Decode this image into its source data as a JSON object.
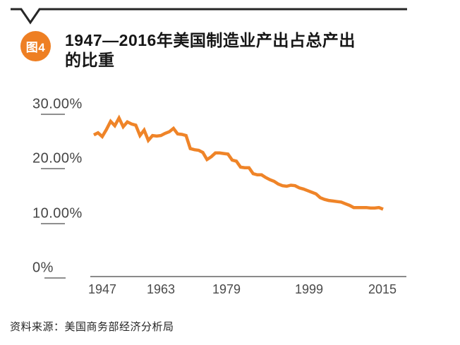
{
  "header": {
    "figure_label": "图4",
    "title_lines": [
      "1947—2016年美国制造业产出占总产出",
      "的比重"
    ]
  },
  "footer": {
    "source": "资料来源：美国商务部经济分析局"
  },
  "colors": {
    "accent_orange": "#EE7F23",
    "line_orange": "#EF8428",
    "rule_black": "#262626",
    "axis_gray": "#8A8A8A"
  },
  "chart_data": {
    "type": "line",
    "title": "1947—2016年美国制造业产出占总产出的比重",
    "xlabel": "",
    "ylabel": "",
    "grid": false,
    "legend": false,
    "line_color": "#EF8428",
    "x_range": [
      1947,
      2016
    ],
    "ylim": [
      0,
      30
    ],
    "x": [
      1947,
      1948,
      1949,
      1950,
      1951,
      1952,
      1953,
      1954,
      1955,
      1956,
      1957,
      1958,
      1959,
      1960,
      1961,
      1962,
      1963,
      1964,
      1965,
      1966,
      1967,
      1968,
      1969,
      1970,
      1971,
      1972,
      1973,
      1974,
      1975,
      1976,
      1977,
      1978,
      1979,
      1980,
      1981,
      1982,
      1983,
      1984,
      1985,
      1986,
      1987,
      1988,
      1989,
      1990,
      1991,
      1992,
      1993,
      1994,
      1995,
      1996,
      1997,
      1998,
      1999,
      2000,
      2001,
      2002,
      2003,
      2004,
      2005,
      2006,
      2007,
      2008,
      2009,
      2010,
      2011,
      2012,
      2013,
      2014,
      2015,
      2016
    ],
    "series": [
      {
        "name": "制造业产出占总产出比重(%)",
        "values": [
          24.4,
          24.8,
          24.1,
          25.4,
          26.9,
          26.1,
          27.5,
          25.9,
          26.8,
          26.4,
          26.2,
          24.3,
          25.3,
          23.4,
          24.3,
          24.2,
          24.3,
          24.7,
          25.0,
          25.6,
          24.6,
          24.5,
          24.3,
          21.9,
          21.7,
          21.6,
          21.2,
          19.9,
          20.4,
          21.1,
          21.1,
          21.0,
          20.9,
          19.8,
          19.6,
          18.5,
          18.4,
          18.4,
          17.3,
          17.1,
          17.1,
          16.6,
          16.2,
          15.9,
          15.4,
          15.1,
          15.0,
          15.2,
          15.1,
          14.7,
          14.5,
          14.2,
          13.9,
          13.6,
          12.9,
          12.6,
          12.4,
          12.3,
          12.2,
          12.1,
          11.8,
          11.5,
          11.1,
          11.1,
          11.1,
          11.1,
          11.0,
          11.0,
          11.1,
          10.8
        ]
      }
    ],
    "y_axis": {
      "ticks": [
        {
          "label": "30.00%",
          "value": 30
        },
        {
          "label": "20.00%",
          "value": 20
        },
        {
          "label": "10.00%",
          "value": 10
        },
        {
          "label": "0%",
          "value": 0
        }
      ]
    },
    "x_axis": {
      "tick_labels": [
        "1947",
        "1963",
        "1979",
        "1999",
        "2015"
      ],
      "tick_years": [
        1947,
        1963,
        1979,
        1999,
        2015
      ]
    }
  }
}
